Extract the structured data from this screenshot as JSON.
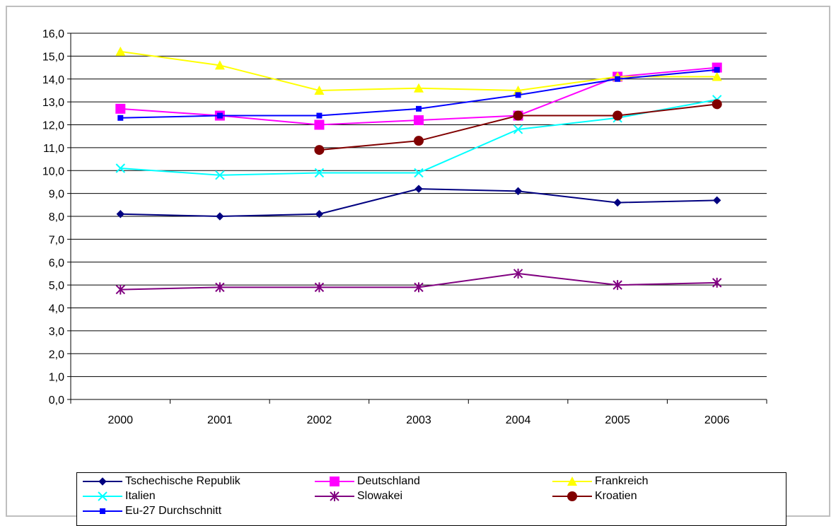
{
  "chart_data": {
    "type": "line",
    "title": "",
    "xlabel": "",
    "ylabel": "",
    "categories": [
      "2000",
      "2001",
      "2002",
      "2003",
      "2004",
      "2005",
      "2006"
    ],
    "ylim": [
      0,
      16
    ],
    "ytick_step": 1,
    "ytick_labels": [
      "0,0",
      "1,0",
      "2,0",
      "3,0",
      "4,0",
      "5,0",
      "6,0",
      "7,0",
      "8,0",
      "9,0",
      "10,0",
      "11,0",
      "12,0",
      "13,0",
      "14,0",
      "15,0",
      "16,0"
    ],
    "grid": true,
    "legend_position": "bottom",
    "series": [
      {
        "name": "Tschechische Republik",
        "color": "#000080",
        "marker": "diamond",
        "values": [
          8.1,
          8.0,
          8.1,
          9.2,
          9.1,
          8.6,
          8.7
        ]
      },
      {
        "name": "Deutschland",
        "color": "#FF00FF",
        "marker": "square",
        "values": [
          12.7,
          12.4,
          12.0,
          12.2,
          12.4,
          14.1,
          14.5
        ]
      },
      {
        "name": "Frankreich",
        "color": "#FFFF00",
        "marker": "triangle",
        "values": [
          15.2,
          14.6,
          13.5,
          13.6,
          13.5,
          14.1,
          14.1
        ]
      },
      {
        "name": "Italien",
        "color": "#00FFFF",
        "marker": "x",
        "values": [
          10.1,
          9.8,
          9.9,
          9.9,
          11.8,
          12.3,
          13.1
        ]
      },
      {
        "name": "Slowakei",
        "color": "#800080",
        "marker": "star",
        "values": [
          4.8,
          4.9,
          4.9,
          4.9,
          5.5,
          5.0,
          5.1
        ]
      },
      {
        "name": "Kroatien",
        "color": "#800000",
        "marker": "circle",
        "values": [
          null,
          null,
          10.9,
          11.3,
          12.4,
          12.4,
          12.9
        ]
      },
      {
        "name": "Eu-27 Durchschnitt",
        "color": "#0000FF",
        "marker": "smallsquare",
        "values": [
          12.3,
          12.4,
          12.4,
          12.7,
          13.3,
          14.0,
          14.4
        ]
      }
    ]
  }
}
